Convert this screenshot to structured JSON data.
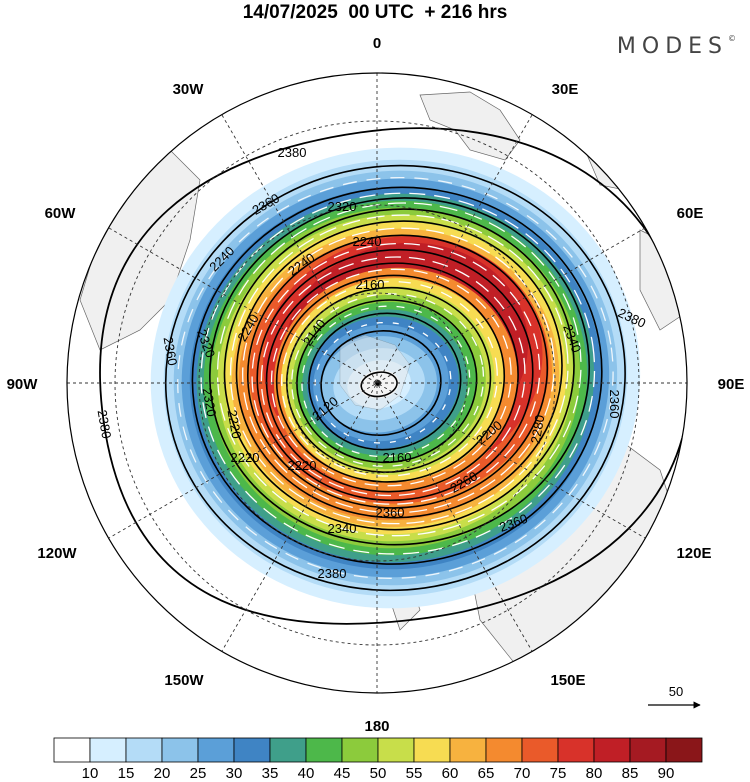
{
  "title": "14/07/2025  00 UTC  + 216 hrs",
  "brand": "MODES",
  "brand_mark": "©",
  "longitude_labels": [
    "0",
    "30E",
    "60E",
    "90E",
    "120E",
    "150E",
    "180",
    "150W",
    "120W",
    "90W",
    "60W",
    "30W"
  ],
  "contour_labels": [
    "2380",
    "2360",
    "2320",
    "2340",
    "2240",
    "2160",
    "2140",
    "2120",
    "2220",
    "2200",
    "2260",
    "2280"
  ],
  "colorbar": {
    "ticks": [
      "10",
      "15",
      "20",
      "25",
      "30",
      "35",
      "40",
      "45",
      "50",
      "55",
      "60",
      "65",
      "70",
      "75",
      "80",
      "85",
      "90"
    ],
    "colors": [
      "#ffffff",
      "#d6efff",
      "#b4dcf7",
      "#8cc3ea",
      "#5b9fd8",
      "#3f84c4",
      "#3f9f8a",
      "#4db84a",
      "#8ccb3c",
      "#c8de4a",
      "#f7dc52",
      "#f7b23f",
      "#f48a2f",
      "#ea5a2a",
      "#d8322a",
      "#c01f26",
      "#a51a22",
      "#8a1619"
    ]
  },
  "vector_reference": "50"
}
